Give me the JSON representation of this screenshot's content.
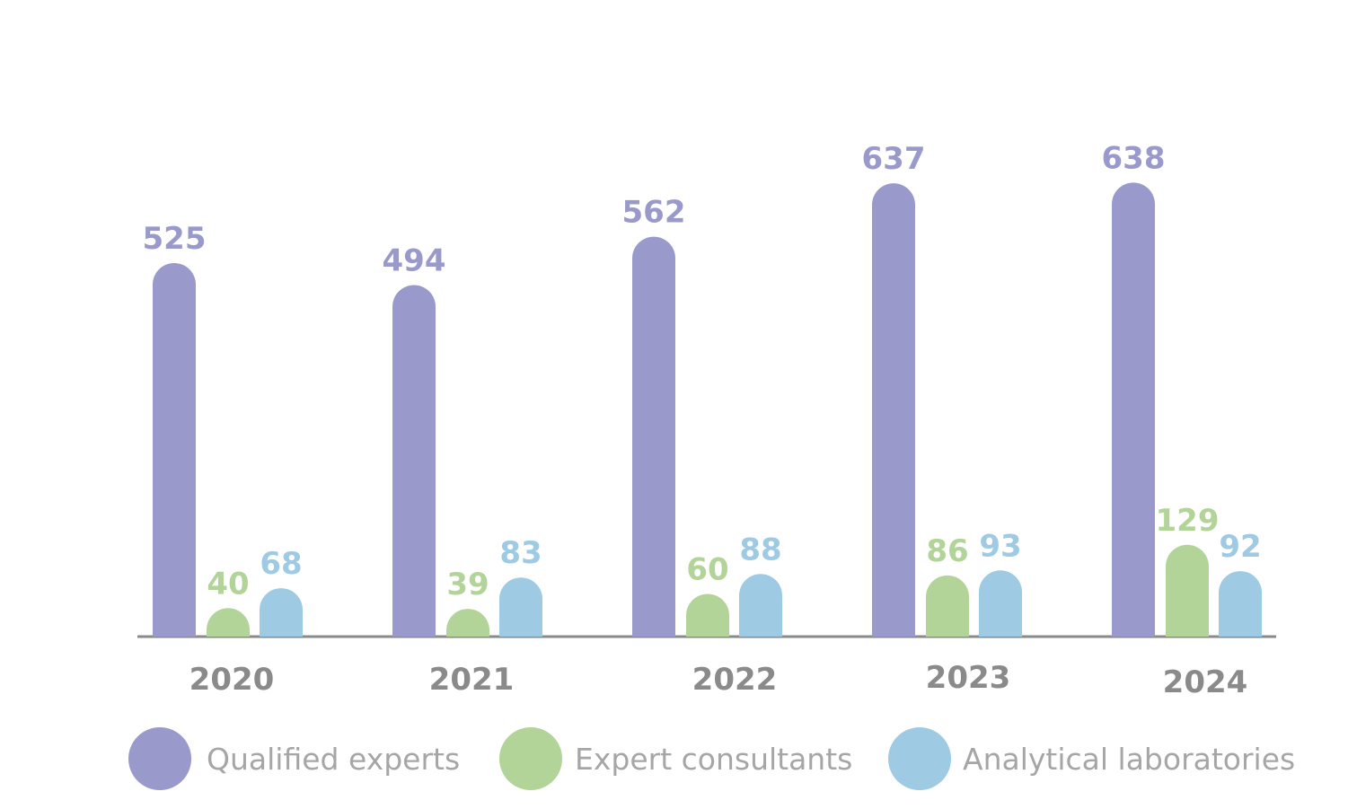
{
  "chart_data": {
    "type": "bar",
    "categories": [
      "2020",
      "2021",
      "2022",
      "2023",
      "2024"
    ],
    "series": [
      {
        "name": "Qualified experts",
        "color": "#9999cc",
        "values": [
          525,
          494,
          562,
          637,
          638
        ]
      },
      {
        "name": "Expert consultants",
        "color": "#b3d498",
        "values": [
          40,
          39,
          60,
          86,
          129
        ]
      },
      {
        "name": "Analytical laboratories",
        "color": "#9ecae3",
        "values": [
          68,
          83,
          88,
          93,
          92
        ]
      }
    ],
    "title": "",
    "xlabel": "",
    "ylabel": "",
    "ylim": [
      0,
      700
    ],
    "grid": false,
    "legend_position": "bottom",
    "axis_color": "#8a8a8a",
    "category_label_color": "#8a8a8a",
    "legend_text_color": "#a6a6a6"
  }
}
